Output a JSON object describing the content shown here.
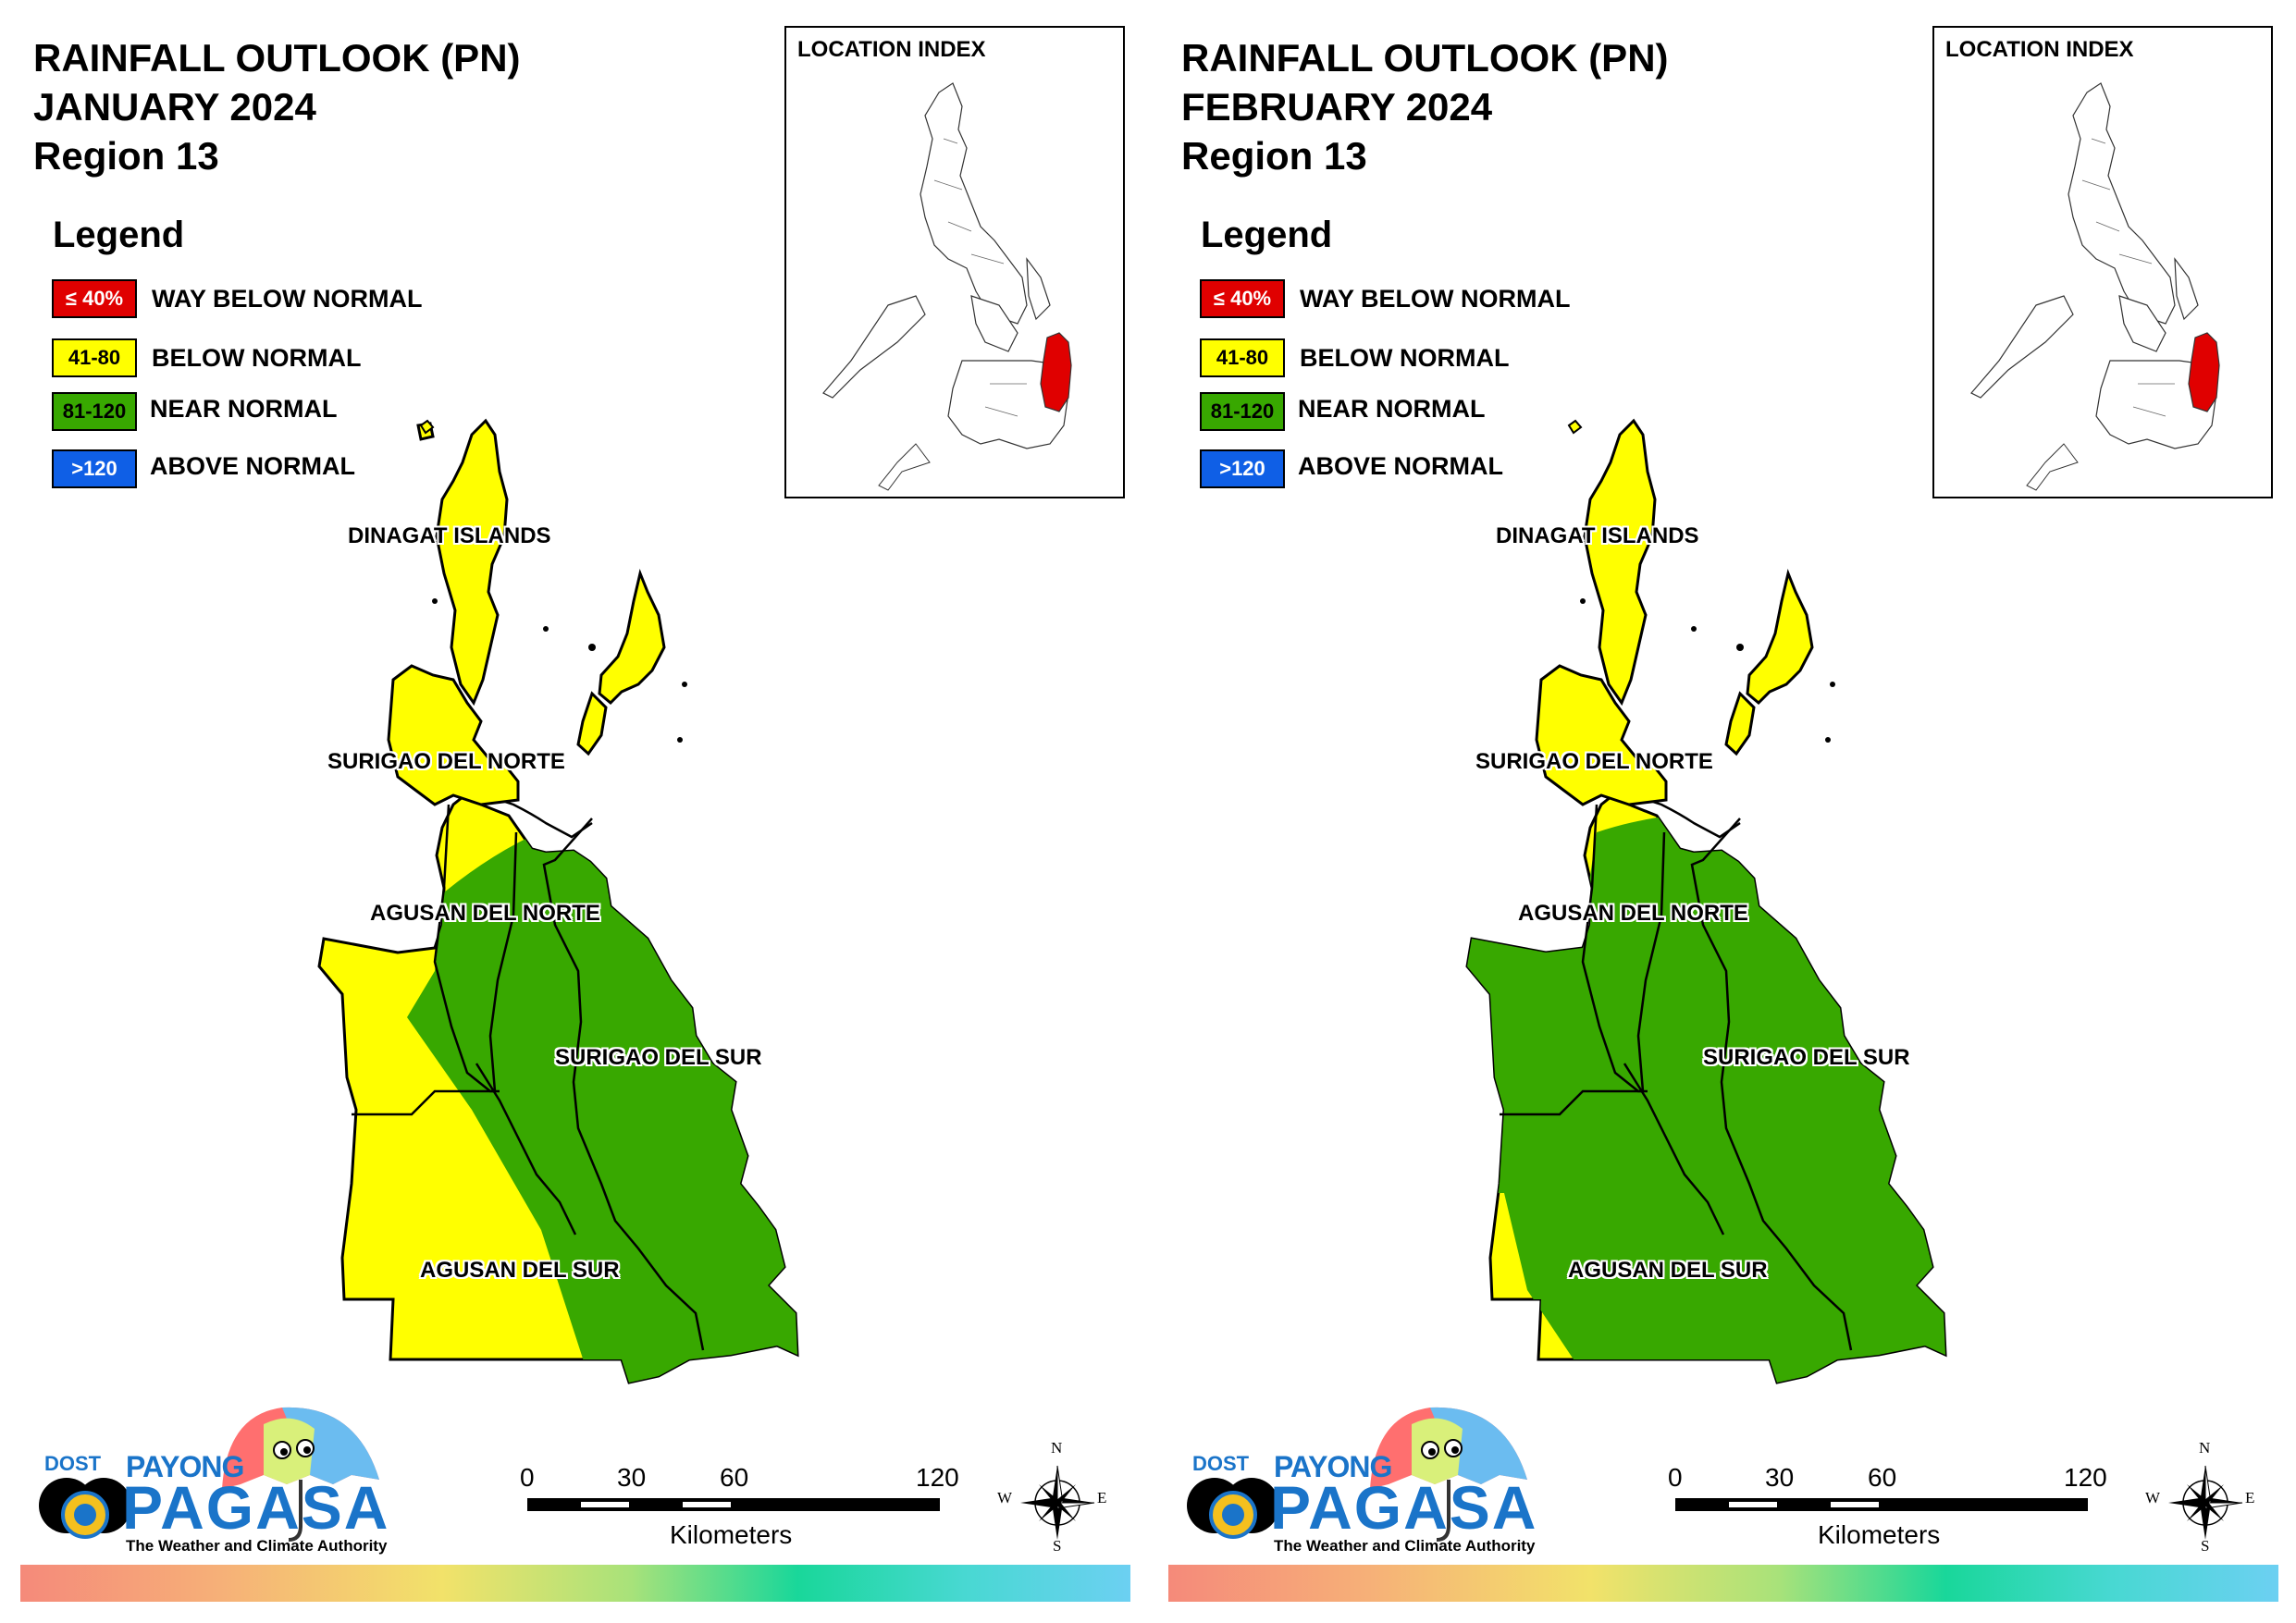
{
  "colors": {
    "way_below": "#e00000",
    "below": "#ffff00",
    "near": "#38a800",
    "above": "#0f5fe6",
    "aoi": "#e00000"
  },
  "icons": [
    "payong-pagasa-logo",
    "pagasa-seal-icon",
    "umbrella-icon",
    "compass-rose-icon"
  ],
  "legend": {
    "title": "Legend",
    "items": [
      {
        "range": "≤ 40%",
        "label": "WAY BELOW NORMAL",
        "color": "#e00000",
        "text_color": "#ffffff"
      },
      {
        "range": "41-80",
        "label": "BELOW NORMAL",
        "color": "#ffff00",
        "text_color": "#000000"
      },
      {
        "range": "81-120",
        "label": "NEAR NORMAL",
        "color": "#38a800",
        "text_color": "#000000"
      },
      {
        "range": ">120",
        "label": "ABOVE NORMAL",
        "color": "#0f5fe6",
        "text_color": "#ffffff"
      }
    ]
  },
  "location_index_title": "LOCATION INDEX",
  "provinces": {
    "dinagat": "DINAGAT ISLANDS",
    "sdn": "SURIGAO DEL NORTE",
    "adn": "AGUSAN DEL NORTE",
    "sds": "SURIGAO DEL SUR",
    "ads": "AGUSAN DEL SUR"
  },
  "scale": {
    "ticks": [
      "0",
      "30",
      "60",
      "120"
    ],
    "unit": "Kilometers"
  },
  "compass": {
    "n": "N",
    "s": "S",
    "e": "E",
    "w": "W"
  },
  "logo": {
    "dost": "DOST",
    "payong": "PAYONG",
    "pagasa": "PAGASA",
    "tagline": "The Weather and Climate Authority"
  },
  "maps": [
    {
      "title_line1": "RAINFALL OUTLOOK (PN)",
      "title_line2": "JANUARY 2024",
      "title_line3": "Region 13",
      "categories": {
        "dinagat": "below",
        "surigao_del_norte": "below",
        "agusan_del_norte_west": "below",
        "agusan_del_norte_east": "near",
        "surigao_del_sur": "near",
        "agusan_del_sur_west": "below",
        "agusan_del_sur_east": "near"
      }
    },
    {
      "title_line1": "RAINFALL OUTLOOK (PN)",
      "title_line2": "FEBRUARY 2024",
      "title_line3": "Region 13",
      "categories": {
        "dinagat": "below",
        "surigao_del_norte": "below",
        "agusan_del_norte_west": "near",
        "agusan_del_norte_east": "near",
        "surigao_del_sur": "near",
        "agusan_del_sur_west": "near",
        "agusan_del_sur_east": "near"
      }
    }
  ]
}
